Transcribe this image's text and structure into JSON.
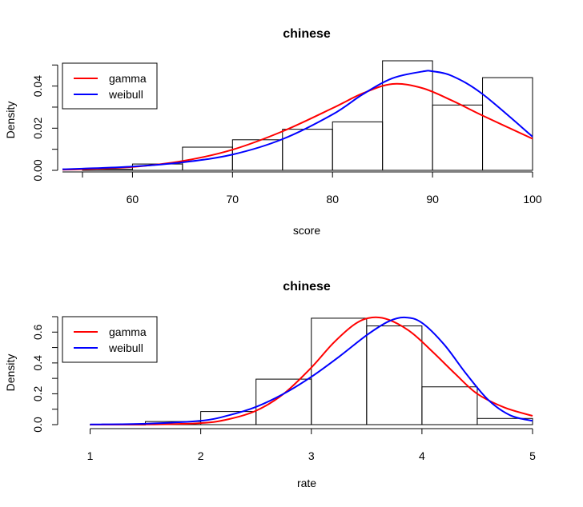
{
  "chart_data": [
    {
      "type": "histogram",
      "title": "chinese",
      "xlabel": "score",
      "ylabel": "Density",
      "xlim": [
        53,
        100
      ],
      "ylim": [
        0,
        0.052
      ],
      "xticks": [
        "60",
        "70",
        "80",
        "90",
        "100"
      ],
      "yticks": [
        "0.00",
        "0.02",
        "0.04"
      ],
      "grid": false,
      "legend_position": "top-left",
      "bins": [
        {
          "from": 55,
          "to": 60,
          "density": 0.0005
        },
        {
          "from": 60,
          "to": 65,
          "density": 0.003
        },
        {
          "from": 65,
          "to": 70,
          "density": 0.011
        },
        {
          "from": 70,
          "to": 75,
          "density": 0.0145
        },
        {
          "from": 75,
          "to": 80,
          "density": 0.0195
        },
        {
          "from": 80,
          "to": 85,
          "density": 0.023
        },
        {
          "from": 85,
          "to": 90,
          "density": 0.052
        },
        {
          "from": 90,
          "to": 95,
          "density": 0.031
        },
        {
          "from": 95,
          "to": 100,
          "density": 0.044
        }
      ],
      "series": [
        {
          "name": "gamma",
          "color": "#ff0000",
          "x": [
            53,
            55,
            60,
            65,
            70,
            75,
            80,
            83,
            86,
            89,
            92,
            95,
            100
          ],
          "y": [
            0.0003,
            0.0005,
            0.0016,
            0.0044,
            0.0098,
            0.0185,
            0.0295,
            0.0365,
            0.041,
            0.039,
            0.033,
            0.026,
            0.015
          ]
        },
        {
          "name": "weibull",
          "color": "#0000ff",
          "x": [
            53,
            55,
            60,
            65,
            70,
            75,
            80,
            83,
            86,
            89,
            90,
            92,
            95,
            100
          ],
          "y": [
            0.0005,
            0.0008,
            0.0018,
            0.0038,
            0.0075,
            0.0148,
            0.0265,
            0.036,
            0.0437,
            0.0469,
            0.047,
            0.0447,
            0.0362,
            0.016
          ]
        }
      ]
    },
    {
      "type": "histogram",
      "title": "chinese",
      "xlabel": "rate",
      "ylabel": "Density",
      "xlim": [
        0.75,
        5
      ],
      "ylim": [
        0,
        0.7
      ],
      "xticks": [
        "1",
        "2",
        "3",
        "4",
        "5"
      ],
      "yticks": [
        "0.0",
        "0.2",
        "0.4",
        "0.6"
      ],
      "grid": false,
      "legend_position": "top-left",
      "bins": [
        {
          "from": 1,
          "to": 1.5,
          "density": 0.0
        },
        {
          "from": 1.5,
          "to": 2,
          "density": 0.02
        },
        {
          "from": 2,
          "to": 2.5,
          "density": 0.085
        },
        {
          "from": 2.5,
          "to": 3,
          "density": 0.295
        },
        {
          "from": 3,
          "to": 3.5,
          "density": 0.69
        },
        {
          "from": 3.5,
          "to": 4,
          "density": 0.64
        },
        {
          "from": 4,
          "to": 4.5,
          "density": 0.245
        },
        {
          "from": 4.5,
          "to": 5,
          "density": 0.04
        }
      ],
      "series": [
        {
          "name": "gamma",
          "color": "#ff0000",
          "x": [
            1,
            1.5,
            2,
            2.25,
            2.5,
            2.75,
            3,
            3.2,
            3.4,
            3.55,
            3.7,
            3.9,
            4.1,
            4.3,
            4.5,
            4.75,
            5
          ],
          "y": [
            0.0,
            0.001,
            0.01,
            0.035,
            0.09,
            0.2,
            0.37,
            0.53,
            0.655,
            0.695,
            0.68,
            0.6,
            0.47,
            0.33,
            0.2,
            0.11,
            0.057
          ]
        },
        {
          "name": "weibull",
          "color": "#0000ff",
          "x": [
            1,
            1.5,
            2,
            2.25,
            2.5,
            2.75,
            3,
            3.25,
            3.5,
            3.7,
            3.85,
            4,
            4.2,
            4.4,
            4.6,
            4.8,
            5
          ],
          "y": [
            0.001,
            0.006,
            0.025,
            0.06,
            0.115,
            0.2,
            0.31,
            0.44,
            0.58,
            0.67,
            0.695,
            0.66,
            0.52,
            0.33,
            0.16,
            0.06,
            0.025
          ]
        }
      ]
    }
  ]
}
